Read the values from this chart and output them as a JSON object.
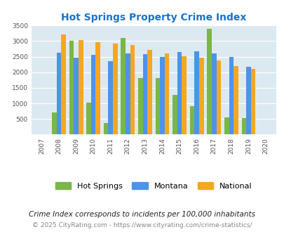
{
  "title": "Hot Springs Property Crime Index",
  "years": [
    2007,
    2008,
    2009,
    2010,
    2011,
    2012,
    2013,
    2014,
    2015,
    2016,
    2017,
    2018,
    2019,
    2020
  ],
  "hot_springs": [
    null,
    700,
    3000,
    1030,
    380,
    3100,
    1820,
    1820,
    1270,
    920,
    3390,
    560,
    530,
    null
  ],
  "montana": [
    null,
    2620,
    2480,
    2560,
    2350,
    2600,
    2590,
    2500,
    2640,
    2680,
    2600,
    2500,
    2180,
    null
  ],
  "national": [
    null,
    3210,
    3040,
    2960,
    2920,
    2870,
    2720,
    2600,
    2510,
    2480,
    2380,
    2200,
    2110,
    null
  ],
  "hot_springs_color": "#7ab648",
  "montana_color": "#4d94e8",
  "national_color": "#f5a623",
  "bg_color": "#dce9f0",
  "title_color": "#1874cd",
  "ylim": [
    0,
    3500
  ],
  "yticks": [
    0,
    500,
    1000,
    1500,
    2000,
    2500,
    3000,
    3500
  ],
  "footnote1": "Crime Index corresponds to incidents per 100,000 inhabitants",
  "footnote2": "© 2025 CityRating.com - https://www.cityrating.com/crime-statistics/",
  "bar_width": 0.27
}
